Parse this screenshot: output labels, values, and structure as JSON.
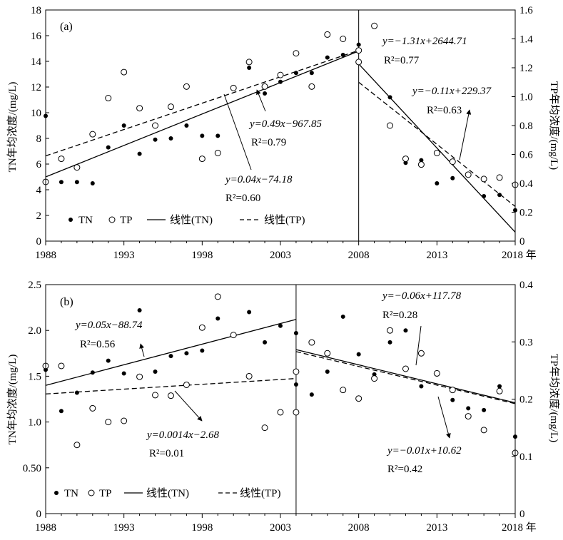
{
  "chart_data": [
    {
      "type": "scatter",
      "panel_label": "(a)",
      "xticks": [
        "1988",
        "1993",
        "1998",
        "2003",
        "2008",
        "2013",
        "2018 年"
      ],
      "xlim": [
        1988,
        2018
      ],
      "ylabel_left": "TN年均浓度/(mg/L)",
      "ylabel_right": "TP年均浓度/(mg/L)",
      "ylim_left": [
        0,
        18
      ],
      "ylim_right": [
        0,
        1.6
      ],
      "yticks_left": [
        "0",
        "2",
        "4",
        "6",
        "8",
        "10",
        "12",
        "14",
        "16",
        "18"
      ],
      "yticks_right": [
        "0",
        "0.2",
        "0.4",
        "0.6",
        "0.8",
        "1.0",
        "1.2",
        "1.4",
        "1.6"
      ],
      "yticks_left_values": [
        0,
        2,
        4,
        6,
        8,
        10,
        12,
        14,
        16,
        18
      ],
      "yticks_right_values": [
        0,
        0.2,
        0.4,
        0.6,
        0.8,
        1.0,
        1.2,
        1.4,
        1.6
      ],
      "divider_year": 2008,
      "legend": [
        "TN",
        "TP",
        "线性(TN)",
        "线性(TP)"
      ],
      "series": [
        {
          "name": "TN",
          "axis": "left",
          "points": [
            [
              1988,
              9.75
            ],
            [
              1989,
              4.6
            ],
            [
              1990,
              4.6
            ],
            [
              1991,
              4.5
            ],
            [
              1992,
              7.3
            ],
            [
              1993,
              9.0
            ],
            [
              1994,
              6.8
            ],
            [
              1995,
              7.9
            ],
            [
              1996,
              8.0
            ],
            [
              1997,
              9.0
            ],
            [
              1998,
              8.2
            ],
            [
              1999,
              8.2
            ],
            [
              2001,
              13.5
            ],
            [
              2002,
              11.5
            ],
            [
              2003,
              12.4
            ],
            [
              2004,
              13.1
            ],
            [
              2005,
              13.1
            ],
            [
              2006,
              14.3
            ],
            [
              2007,
              14.5
            ],
            [
              2008,
              15.3
            ],
            [
              2009,
              16.7
            ],
            [
              2010,
              11.2
            ],
            [
              2011,
              6.1
            ],
            [
              2012,
              6.3
            ],
            [
              2013,
              4.5
            ],
            [
              2014,
              4.9
            ],
            [
              2015,
              5.2
            ],
            [
              2016,
              3.5
            ],
            [
              2017,
              3.6
            ],
            [
              2018,
              2.4
            ]
          ]
        },
        {
          "name": "TP",
          "axis": "right",
          "points": [
            [
              1988,
              0.41
            ],
            [
              1989,
              0.57
            ],
            [
              1990,
              0.51
            ],
            [
              1991,
              0.74
            ],
            [
              1992,
              0.99
            ],
            [
              1993,
              1.17
            ],
            [
              1994,
              0.92
            ],
            [
              1995,
              0.8
            ],
            [
              1996,
              0.93
            ],
            [
              1997,
              1.07
            ],
            [
              1998,
              0.57
            ],
            [
              1999,
              0.61
            ],
            [
              2000,
              1.06
            ],
            [
              2001,
              1.24
            ],
            [
              2002,
              1.07
            ],
            [
              2003,
              1.15
            ],
            [
              2004,
              1.3
            ],
            [
              2005,
              1.07
            ],
            [
              2006,
              1.43
            ],
            [
              2007,
              1.4
            ],
            [
              2008,
              1.32
            ],
            [
              2008,
              1.24
            ],
            [
              2009,
              1.49
            ],
            [
              2010,
              0.8
            ],
            [
              2011,
              0.57
            ],
            [
              2012,
              0.53
            ],
            [
              2013,
              0.61
            ],
            [
              2014,
              0.55
            ],
            [
              2015,
              0.46
            ],
            [
              2016,
              0.43
            ],
            [
              2017,
              0.44
            ],
            [
              2018,
              0.39
            ]
          ]
        }
      ],
      "fits": [
        {
          "series": "TN",
          "axis": "left",
          "style": "solid",
          "x": [
            1988,
            2008
          ],
          "y": [
            5.0,
            14.8
          ]
        },
        {
          "series": "TP",
          "axis": "right",
          "style": "dashed",
          "x": [
            1988,
            2008
          ],
          "y": [
            0.59,
            1.32
          ]
        },
        {
          "series": "TN",
          "axis": "left",
          "style": "solid",
          "x": [
            2008,
            2018
          ],
          "y": [
            13.8,
            0.7
          ]
        },
        {
          "series": "TP",
          "axis": "right",
          "style": "dashed",
          "x": [
            2008,
            2018
          ],
          "y": [
            1.1,
            0.24
          ]
        }
      ],
      "annotations": [
        {
          "eq": "y=0.49x−967.85",
          "r2": "R²=0.79"
        },
        {
          "eq": "y=0.04x−74.18",
          "r2": "R²=0.60"
        },
        {
          "eq": "y=−1.31x+2644.71",
          "r2": "R²=0.77"
        },
        {
          "eq": "y=−0.11x+229.37",
          "r2": "R²=0.63"
        }
      ]
    },
    {
      "type": "scatter",
      "panel_label": "(b)",
      "xticks": [
        "1988",
        "1993",
        "1998",
        "2003",
        "2008",
        "2013",
        "2018 年"
      ],
      "xlim": [
        1988,
        2018
      ],
      "ylabel_left": "TN年均浓度/(mg/L)",
      "ylabel_right": "TP年均浓度/(mg/L)",
      "ylim_left": [
        0,
        2.5
      ],
      "ylim_right": [
        0,
        0.4
      ],
      "yticks_left": [
        "0",
        "0.50",
        "1.0",
        "1.5",
        "2.0",
        "2.5"
      ],
      "yticks_right": [
        "0",
        "0.1",
        "0.2",
        "0.3",
        "0.4"
      ],
      "yticks_left_values": [
        0,
        0.5,
        1.0,
        1.5,
        2.0,
        2.5
      ],
      "yticks_right_values": [
        0,
        0.1,
        0.2,
        0.3,
        0.4
      ],
      "divider_year": 2004,
      "legend": [
        "TN",
        "TP",
        "线性(TN)",
        "线性(TP)"
      ],
      "series": [
        {
          "name": "TN",
          "axis": "left",
          "points": [
            [
              1988,
              1.57
            ],
            [
              1989,
              1.12
            ],
            [
              1990,
              1.32
            ],
            [
              1991,
              1.54
            ],
            [
              1992,
              1.67
            ],
            [
              1993,
              1.53
            ],
            [
              1994,
              2.22
            ],
            [
              1995,
              1.55
            ],
            [
              1996,
              1.72
            ],
            [
              1997,
              1.75
            ],
            [
              1998,
              1.78
            ],
            [
              1999,
              2.13
            ],
            [
              2001,
              2.2
            ],
            [
              2002,
              1.87
            ],
            [
              2003,
              2.05
            ],
            [
              2004,
              1.97
            ],
            [
              2004,
              1.41
            ],
            [
              2005,
              1.3
            ],
            [
              2006,
              1.55
            ],
            [
              2007,
              2.15
            ],
            [
              2008,
              1.74
            ],
            [
              2009,
              1.52
            ],
            [
              2010,
              1.87
            ],
            [
              2011,
              2.0
            ],
            [
              2012,
              1.39
            ],
            [
              2013,
              1.52
            ],
            [
              2014,
              1.24
            ],
            [
              2015,
              1.15
            ],
            [
              2016,
              1.13
            ],
            [
              2017,
              1.39
            ],
            [
              2018,
              0.84
            ]
          ]
        },
        {
          "name": "TP",
          "axis": "right",
          "points": [
            [
              1988,
              0.258
            ],
            [
              1989,
              0.258
            ],
            [
              1990,
              0.12
            ],
            [
              1991,
              0.184
            ],
            [
              1992,
              0.16
            ],
            [
              1993,
              0.162
            ],
            [
              1994,
              0.239
            ],
            [
              1995,
              0.207
            ],
            [
              1996,
              0.206
            ],
            [
              1997,
              0.225
            ],
            [
              1998,
              0.325
            ],
            [
              1999,
              0.379
            ],
            [
              2000,
              0.312
            ],
            [
              2001,
              0.24
            ],
            [
              2002,
              0.15
            ],
            [
              2003,
              0.177
            ],
            [
              2004,
              0.248
            ],
            [
              2004,
              0.177
            ],
            [
              2005,
              0.299
            ],
            [
              2006,
              0.28
            ],
            [
              2007,
              0.216
            ],
            [
              2008,
              0.201
            ],
            [
              2009,
              0.236
            ],
            [
              2010,
              0.32
            ],
            [
              2011,
              0.253
            ],
            [
              2012,
              0.28
            ],
            [
              2013,
              0.245
            ],
            [
              2014,
              0.216
            ],
            [
              2015,
              0.17
            ],
            [
              2016,
              0.146
            ],
            [
              2017,
              0.214
            ],
            [
              2018,
              0.106
            ]
          ]
        }
      ],
      "fits": [
        {
          "series": "TN",
          "axis": "left",
          "style": "solid",
          "x": [
            1988,
            2004
          ],
          "y": [
            1.4,
            2.12
          ]
        },
        {
          "series": "TP",
          "axis": "right",
          "style": "dashed",
          "x": [
            1988,
            2004
          ],
          "y": [
            0.209,
            0.236
          ]
        },
        {
          "series": "TN",
          "axis": "left",
          "style": "solid",
          "x": [
            2004,
            2018
          ],
          "y": [
            1.79,
            1.21
          ]
        },
        {
          "series": "TP",
          "axis": "right",
          "style": "dashed",
          "x": [
            2004,
            2018
          ],
          "y": [
            0.283,
            0.192
          ]
        }
      ],
      "annotations": [
        {
          "eq": "y=0.05x−88.74",
          "r2": "R²=0.56"
        },
        {
          "eq": "y=0.0014x−2.68",
          "r2": "R²=0.01"
        },
        {
          "eq": "y=−0.06x+117.78",
          "r2": "R²=0.28"
        },
        {
          "eq": "y=−0.01x+10.62",
          "r2": "R²=0.42"
        }
      ]
    }
  ]
}
